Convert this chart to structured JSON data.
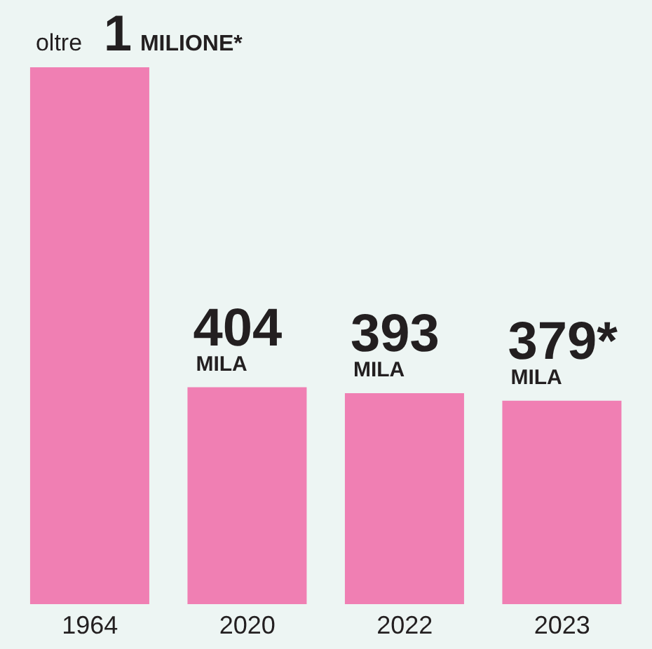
{
  "chart_data": {
    "type": "bar",
    "categories": [
      "1964",
      "2020",
      "2022",
      "2023"
    ],
    "values": [
      1000,
      404,
      393,
      379
    ],
    "value_labels": [
      "oltre 1 MILIONE*",
      "404 MILA",
      "393 MILA",
      "379* MILA"
    ],
    "color": "#f07fb3",
    "grid": false
  }
}
